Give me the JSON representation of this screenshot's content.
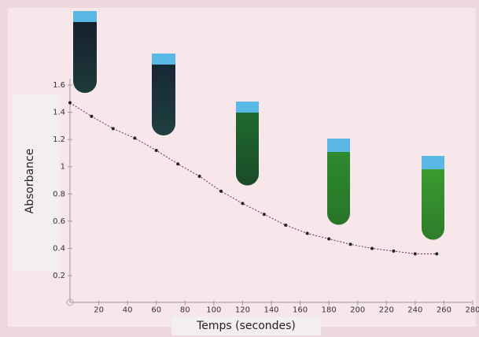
{
  "chart_data": {
    "type": "line",
    "x_label": "Temps (secondes)",
    "y_label": "Absorbance",
    "xlim": [
      0,
      280
    ],
    "xticks": [
      20,
      40,
      60,
      80,
      100,
      120,
      140,
      160,
      180,
      200,
      220,
      240,
      260,
      280
    ],
    "ylim": [
      0,
      1.6
    ],
    "yticks": [
      0.2,
      0.4,
      0.6,
      0.8,
      1,
      1.2,
      1.4,
      1.6
    ],
    "x": [
      0,
      15,
      30,
      45,
      60,
      75,
      90,
      105,
      120,
      135,
      150,
      165,
      180,
      195,
      210,
      225,
      240,
      255
    ],
    "series": [
      {
        "color": "#7a2a3a",
        "values": [
          1.47,
          1.37,
          1.28,
          1.21,
          1.12,
          1.02,
          0.93,
          0.82,
          0.73,
          0.65,
          0.57,
          0.51,
          0.47,
          0.43,
          0.4,
          0.38,
          0.36,
          0.36
        ]
      }
    ]
  }
}
